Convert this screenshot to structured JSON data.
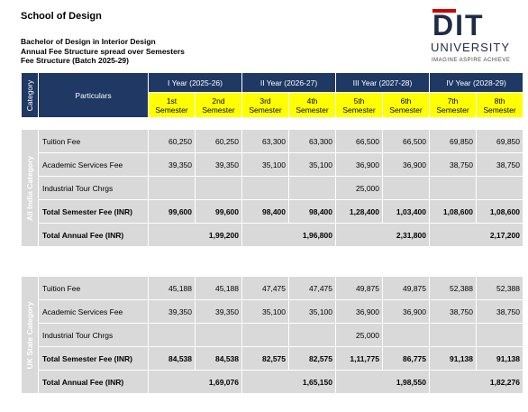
{
  "school": "School of Design",
  "program": {
    "line1": "Bachelor of Design in Interior Design",
    "line2": "Annual Fee Structure spread over Semesters",
    "line3": "Fee Structure (Batch 2025-29)"
  },
  "logo": {
    "name": "DIT",
    "sub": "UNIVERSITY",
    "tagline": "IMAGINE  ASPIRE  ACHIEVE"
  },
  "header": {
    "category": "Category",
    "particulars": "Particulars",
    "years": [
      "I Year (2025-26)",
      "II Year (2026-27)",
      "III Year (2027-28)",
      "IV Year (2028-29)"
    ],
    "semesters": [
      {
        "num": "1st",
        "label": "Semester"
      },
      {
        "num": "2nd",
        "label": "Semester"
      },
      {
        "num": "3rd",
        "label": "Semester"
      },
      {
        "num": "4th",
        "label": "Semester"
      },
      {
        "num": "5th",
        "label": "Semester"
      },
      {
        "num": "6th",
        "label": "Semester"
      },
      {
        "num": "7th",
        "label": "Semester"
      },
      {
        "num": "8th",
        "label": "Semester"
      }
    ]
  },
  "sections": [
    {
      "category": "All India Category",
      "rows": [
        {
          "label": "Tuition Fee",
          "values": [
            "60,250",
            "60,250",
            "63,300",
            "63,300",
            "66,500",
            "66,500",
            "69,850",
            "69,850"
          ]
        },
        {
          "label": "Academic Services Fee",
          "values": [
            "39,350",
            "39,350",
            "35,100",
            "35,100",
            "36,900",
            "36,900",
            "38,750",
            "38,750"
          ]
        },
        {
          "label": "Industrial Tour Chrgs",
          "values": [
            "",
            "",
            "",
            "",
            "25,000",
            "",
            "",
            ""
          ]
        },
        {
          "label": "Total Semester Fee (INR)",
          "values": [
            "99,600",
            "99,600",
            "98,400",
            "98,400",
            "1,28,400",
            "1,03,400",
            "1,08,600",
            "1,08,600"
          ]
        }
      ],
      "annual": {
        "label": "Total Annual Fee (INR)",
        "values": [
          "1,99,200",
          "1,96,800",
          "2,31,800",
          "2,17,200"
        ]
      }
    },
    {
      "category": "UK State Category",
      "rows": [
        {
          "label": "Tuition Fee",
          "values": [
            "45,188",
            "45,188",
            "47,475",
            "47,475",
            "49,875",
            "49,875",
            "52,388",
            "52,388"
          ]
        },
        {
          "label": "Academic Services Fee",
          "values": [
            "39,350",
            "39,350",
            "35,100",
            "35,100",
            "36,900",
            "36,900",
            "38,750",
            "38,750"
          ]
        },
        {
          "label": "Industrial Tour Chrgs",
          "values": [
            "",
            "",
            "",
            "",
            "25,000",
            "",
            "",
            ""
          ]
        },
        {
          "label": "Total Semester Fee (INR)",
          "values": [
            "84,538",
            "84,538",
            "82,575",
            "82,575",
            "1,11,775",
            "86,775",
            "91,138",
            "91,138"
          ]
        }
      ],
      "annual": {
        "label": "Total Annual Fee (INR)",
        "values": [
          "1,69,076",
          "1,65,150",
          "1,98,550",
          "1,82,276"
        ]
      }
    }
  ]
}
